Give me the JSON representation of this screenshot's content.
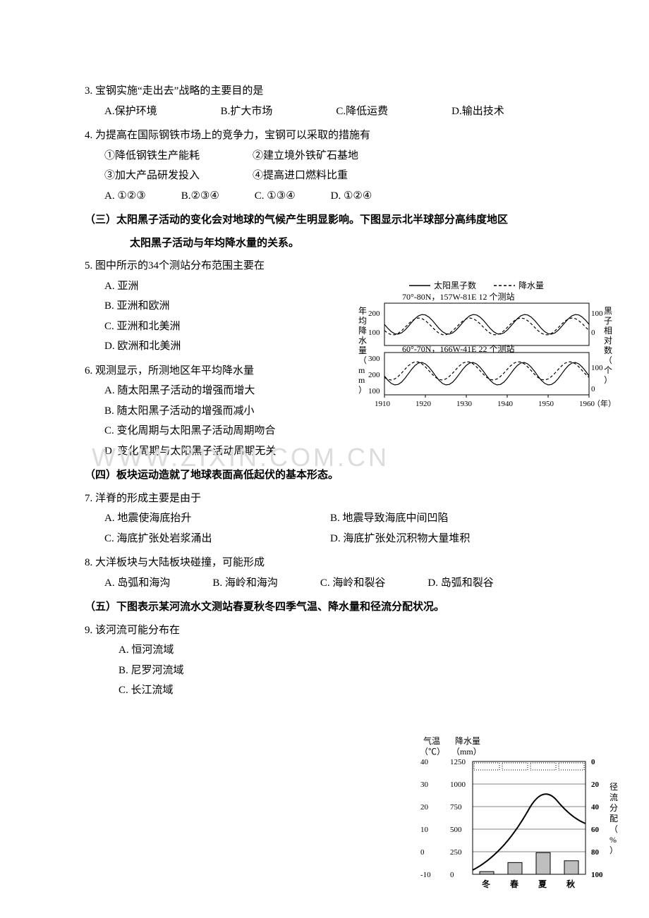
{
  "q3": {
    "stem": "3. 宝钢实施“走出去”战略的主要目的是",
    "A": "A.保护环境",
    "B": "B.扩大市场",
    "C": "C.降低运费",
    "D": "D.输出技术"
  },
  "q4": {
    "stem": "4. 为提高在国际钢铁市场上的竞争力，宝钢可以采取的措施有",
    "i1": "①降低钢铁生产能耗",
    "i2": "②建立境外铁矿石基地",
    "i3": "③加大产品研发投入",
    "i4": "④提高进口燃料比重",
    "A": "A. ①②③",
    "B": "B.②③④",
    "C": "C. ①③④",
    "D": "D. ①②④"
  },
  "section3": {
    "l1": "（三）太阳黑子活动的变化会对地球的气候产生明显影响。下图显示北半球部分高纬度地区",
    "l2": "太阳黑子活动与年均降水量的关系。"
  },
  "q5": {
    "stem": "5. 图中所示的34个测站分布范围主要在",
    "A": "A. 亚洲",
    "B": "B. 亚洲和欧洲",
    "C": "C. 亚洲和北美洲",
    "D": "D. 欧洲和北美洲"
  },
  "q6": {
    "stem": "6. 观测显示，所测地区年平均降水量",
    "A": "A. 随太阳黑子活动的增强而增大",
    "B": "B. 随太阳黑子活动的增强而减小",
    "C": "C. 变化周期与太阳黑子活动周期吻合",
    "D": "D. 变化周期与太阳黑子活动周期无关"
  },
  "section4": "（四）板块运动造就了地球表面高低起伏的基本形态。",
  "q7": {
    "stem": "7. 洋脊的形成主要是由于",
    "A": "A. 地震使海底抬升",
    "B": "B. 地震导致海底中间凹陷",
    "C": "C. 海底扩张处岩浆涌出",
    "D": "D. 海底扩张处沉积物大量堆积"
  },
  "q8": {
    "stem": "8. 大洋板块与大陆板块碰撞，可能形成",
    "A": "A. 岛弧和海沟",
    "B": "B. 海岭和海沟",
    "C": "C. 海岭和裂谷",
    "D": "D. 岛弧和裂谷"
  },
  "section5": "（五）下图表示某河流水文测站春夏秋冬四季气温、降水量和径流分配状况。",
  "q9": {
    "stem": "9. 该河流可能分布在",
    "A": "A. 恒河流域",
    "B": "B. 尼罗河流域",
    "C": "C. 长江流域"
  },
  "watermark": "WWW.ZIXIN.COM.CN",
  "chart1": {
    "legend_sun": "太阳黑子数",
    "legend_rain": "降水量",
    "band1": "70°-80N，157W-81E   12 个测站",
    "band2": "60°-70N，166W-41E   22 个测站",
    "ylabel": "年均降水量（mm）",
    "ylabel2": "黑子相对数（个）",
    "xlabel": "（年）",
    "y1_ticks": [
      "200",
      "100",
      "300",
      "200",
      "100"
    ],
    "y2_ticks": [
      "100",
      "0",
      "100",
      "0"
    ],
    "x_ticks": [
      "1910",
      "1920",
      "1930",
      "1940",
      "1950",
      "1960"
    ],
    "line_color": "#000000",
    "dash_color": "#000000",
    "bg": "#ffffff",
    "fontsize": 12
  },
  "chart2": {
    "h_temp": "气温",
    "h_rain": "降水量",
    "u_temp": "（℃）",
    "u_rain": "（mm）",
    "ylabel_right": "径流分配（%）",
    "temp_ticks": [
      "40",
      "30",
      "20",
      "10",
      "0",
      "-10"
    ],
    "rain_ticks": [
      "1250",
      "1000",
      "750",
      "500",
      "250",
      "0"
    ],
    "flow_ticks": [
      "0",
      "20",
      "40",
      "60",
      "80",
      "100"
    ],
    "seasons": [
      "冬",
      "春",
      "夏",
      "秋"
    ],
    "temp_points": [
      -5,
      8,
      30,
      15
    ],
    "bar_values": [
      30,
      130,
      240,
      150
    ],
    "bar_color": "#bfbfbf",
    "line_color": "#000000",
    "grid_color": "#000000",
    "bg": "#ffffff",
    "fontsize": 12
  }
}
